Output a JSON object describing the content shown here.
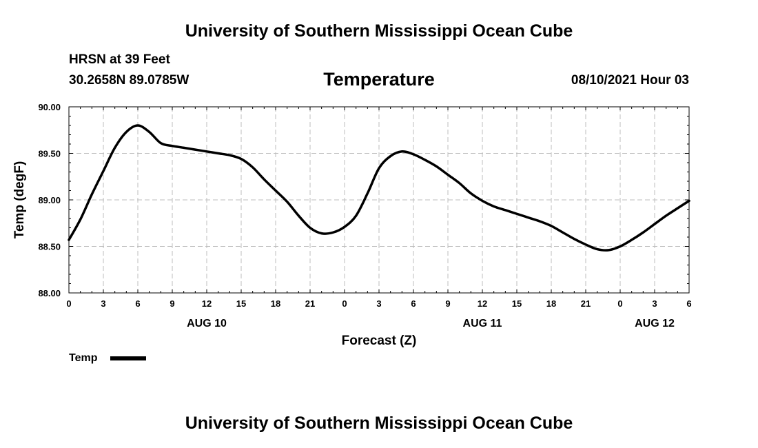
{
  "header": {
    "title": "University of Southern Mississippi Ocean Cube",
    "station": "HRSN at 39 Feet",
    "coords": "30.2658N  89.0785W",
    "heading": "Temperature",
    "datetime": "08/10/2021 Hour 03"
  },
  "footer": {
    "title": "University of Southern Mississippi Ocean Cube"
  },
  "chart_data": {
    "type": "line",
    "title": "Temperature",
    "xlabel": "Forecast (Z)",
    "ylabel": "Temp (degF)",
    "ylim": [
      88.0,
      90.0
    ],
    "xlim": [
      0,
      54
    ],
    "yticks": [
      88.0,
      88.5,
      89.0,
      89.5,
      90.0
    ],
    "ytick_labels": [
      "88.00",
      "88.50",
      "89.00",
      "89.50",
      "90.00"
    ],
    "xticks": [
      0,
      3,
      6,
      9,
      12,
      15,
      18,
      21,
      24,
      27,
      30,
      33,
      36,
      39,
      42,
      45,
      48,
      51,
      54
    ],
    "xtick_labels": [
      "0",
      "3",
      "6",
      "9",
      "12",
      "15",
      "18",
      "21",
      "0",
      "3",
      "6",
      "9",
      "12",
      "15",
      "18",
      "21",
      "0",
      "3",
      "6"
    ],
    "date_labels": [
      {
        "label": "AUG 10",
        "x": 12
      },
      {
        "label": "AUG 11",
        "x": 36
      },
      {
        "label": "AUG 12",
        "x": 51
      }
    ],
    "grid": true,
    "legend": {
      "position": "bottom-left",
      "entries": [
        "Temp"
      ]
    },
    "series": [
      {
        "name": "Temp",
        "color": "#000000",
        "x": [
          0,
          1,
          2,
          3,
          4,
          5,
          6,
          7,
          8,
          9,
          10,
          11,
          12,
          13,
          14,
          15,
          16,
          17,
          18,
          19,
          20,
          21,
          22,
          23,
          24,
          25,
          26,
          27,
          28,
          29,
          30,
          31,
          32,
          33,
          34,
          35,
          36,
          37,
          38,
          39,
          40,
          41,
          42,
          43,
          44,
          45,
          46,
          47,
          48,
          49,
          50,
          51,
          52,
          53,
          54
        ],
        "values": [
          88.57,
          88.79,
          89.06,
          89.31,
          89.56,
          89.73,
          89.8,
          89.73,
          89.61,
          89.58,
          89.56,
          89.54,
          89.52,
          89.5,
          89.48,
          89.44,
          89.35,
          89.22,
          89.1,
          88.98,
          88.83,
          88.7,
          88.64,
          88.65,
          88.71,
          88.83,
          89.07,
          89.34,
          89.47,
          89.52,
          89.49,
          89.43,
          89.36,
          89.27,
          89.18,
          89.07,
          88.99,
          88.93,
          88.89,
          88.85,
          88.81,
          88.77,
          88.72,
          88.65,
          88.58,
          88.52,
          88.47,
          88.46,
          88.5,
          88.57,
          88.65,
          88.74,
          88.83,
          88.91,
          88.99
        ]
      }
    ]
  }
}
